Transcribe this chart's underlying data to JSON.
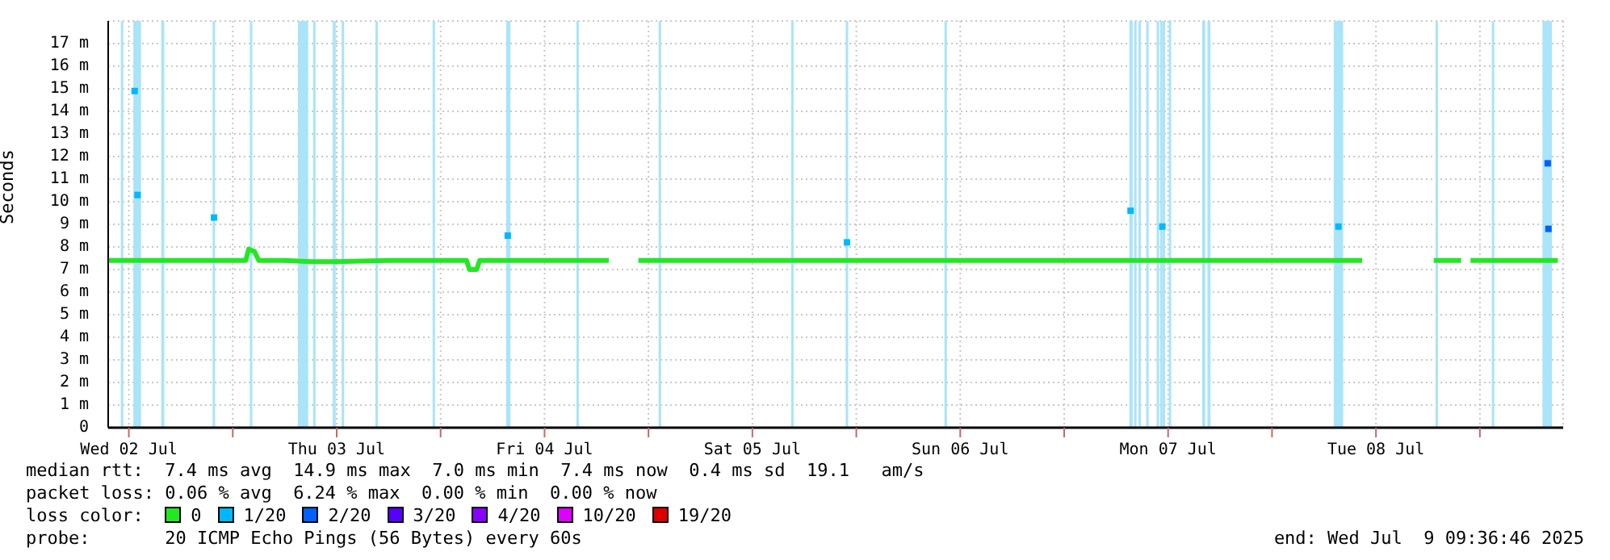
{
  "chart_data": {
    "type": "line",
    "ylabel": "Seconds",
    "xlim": [
      "2025-07-02T09:37",
      "2025-07-09T09:37"
    ],
    "xticks": [
      {
        "value": "2025-07-02T12:00",
        "label": "Wed 02 Jul"
      },
      {
        "value": "2025-07-03T00:00",
        "label": null
      },
      {
        "value": "2025-07-03T12:00",
        "label": "Thu 03 Jul"
      },
      {
        "value": "2025-07-04T00:00",
        "label": null
      },
      {
        "value": "2025-07-04T12:00",
        "label": "Fri 04 Jul"
      },
      {
        "value": "2025-07-05T00:00",
        "label": null
      },
      {
        "value": "2025-07-05T12:00",
        "label": "Sat 05 Jul"
      },
      {
        "value": "2025-07-06T00:00",
        "label": null
      },
      {
        "value": "2025-07-06T12:00",
        "label": "Sun 06 Jul"
      },
      {
        "value": "2025-07-07T00:00",
        "label": null
      },
      {
        "value": "2025-07-07T12:00",
        "label": "Mon 07 Jul"
      },
      {
        "value": "2025-07-08T00:00",
        "label": null
      },
      {
        "value": "2025-07-08T12:00",
        "label": "Tue 08 Jul"
      },
      {
        "value": "2025-07-09T00:00",
        "label": null
      }
    ],
    "ylim": [
      0,
      18
    ],
    "yticks": [
      {
        "value": 0,
        "label": "0"
      },
      {
        "value": 1,
        "label": "1 m"
      },
      {
        "value": 2,
        "label": "2 m"
      },
      {
        "value": 3,
        "label": "3 m"
      },
      {
        "value": 4,
        "label": "4 m"
      },
      {
        "value": 5,
        "label": "5 m"
      },
      {
        "value": 6,
        "label": "6 m"
      },
      {
        "value": 7,
        "label": "7 m"
      },
      {
        "value": 8,
        "label": "8 m"
      },
      {
        "value": 9,
        "label": "9 m"
      },
      {
        "value": 10,
        "label": "10 m"
      },
      {
        "value": 11,
        "label": "11 m"
      },
      {
        "value": 12,
        "label": "12 m"
      },
      {
        "value": 13,
        "label": "13 m"
      },
      {
        "value": 14,
        "label": "14 m"
      },
      {
        "value": 15,
        "label": "15 m"
      },
      {
        "value": 16,
        "label": "16 m"
      },
      {
        "value": 17,
        "label": "17 m"
      }
    ],
    "grid": true,
    "legend": "bottom",
    "series": [
      {
        "name": "0",
        "color": "#22e822",
        "x": [
          "2025-07-02T09:37",
          "2025-07-02T12:00",
          "2025-07-02T15:00",
          "2025-07-02T18:00",
          "2025-07-02T21:00",
          "2025-07-03T00:00",
          "2025-07-03T01:30",
          "2025-07-03T01:50",
          "2025-07-03T02:30",
          "2025-07-03T03:00",
          "2025-07-03T06:00",
          "2025-07-03T09:00",
          "2025-07-03T12:00",
          "2025-07-03T18:00",
          "2025-07-04T00:00",
          "2025-07-04T03:00",
          "2025-07-04T03:20",
          "2025-07-04T04:10",
          "2025-07-04T04:30",
          "2025-07-04T09:00",
          "2025-07-04T15:00",
          "2025-07-04T19:25",
          "2025-07-04T19:30",
          "2025-07-04T22:45",
          "2025-07-04T22:50",
          "2025-07-05T06:00",
          "2025-07-05T12:00",
          "2025-07-05T18:00",
          "2025-07-06T00:00",
          "2025-07-06T06:00",
          "2025-07-06T12:00",
          "2025-07-06T18:00",
          "2025-07-07T00:00",
          "2025-07-07T06:00",
          "2025-07-07T12:00",
          "2025-07-07T18:00",
          "2025-07-08T00:00",
          "2025-07-08T06:00",
          "2025-07-08T10:25",
          "2025-07-08T10:30",
          "2025-07-08T18:35",
          "2025-07-08T18:40",
          "2025-07-08T21:50",
          "2025-07-08T21:55",
          "2025-07-08T22:50",
          "2025-07-08T22:55",
          "2025-07-09T03:00",
          "2025-07-09T09:00"
        ],
        "values": [
          7.4,
          7.4,
          7.4,
          7.4,
          7.4,
          7.4,
          7.4,
          7.9,
          7.8,
          7.4,
          7.4,
          7.35,
          7.35,
          7.4,
          7.4,
          7.4,
          7.0,
          7.0,
          7.4,
          7.4,
          7.4,
          7.4,
          null,
          null,
          7.4,
          7.4,
          7.4,
          7.4,
          7.4,
          7.4,
          7.4,
          7.4,
          7.4,
          7.4,
          7.4,
          7.4,
          7.4,
          7.4,
          7.4,
          null,
          null,
          7.4,
          7.4,
          null,
          null,
          7.4,
          7.4,
          7.4
        ]
      },
      {
        "name": "1/20",
        "color": "#00b8ff",
        "type": "scatter",
        "marker": "square",
        "x": [
          "2025-07-02T12:40",
          "2025-07-02T13:00",
          "2025-07-02T21:50",
          "2025-07-04T07:45",
          "2025-07-05T22:55",
          "2025-07-07T07:40",
          "2025-07-07T11:20",
          "2025-07-08T07:40"
        ],
        "values": [
          14.9,
          10.3,
          9.3,
          8.5,
          8.2,
          9.6,
          8.9,
          8.9
        ]
      },
      {
        "name": "2/20",
        "color": "#0060ff",
        "type": "scatter",
        "marker": "square",
        "x": [
          "2025-07-09T07:50",
          "2025-07-09T07:55"
        ],
        "values": [
          11.7,
          8.8
        ]
      },
      {
        "name": "3/20",
        "color": "#5500ff"
      },
      {
        "name": "4/20",
        "color": "#8800ff"
      },
      {
        "name": "10/20",
        "color": "#dd00ff"
      },
      {
        "name": "19/20",
        "color": "#dd0000"
      }
    ],
    "bands": [
      {
        "axis": "x",
        "from": "2025-07-02T11:10",
        "to": "2025-07-02T11:16",
        "color": "#aae4f8"
      },
      {
        "axis": "x",
        "from": "2025-07-02T12:37",
        "to": "2025-07-02T13:19",
        "color": "#aae4f8"
      },
      {
        "axis": "x",
        "from": "2025-07-02T15:50",
        "to": "2025-07-02T16:00",
        "color": "#aae4f8"
      },
      {
        "axis": "x",
        "from": "2025-07-02T21:46",
        "to": "2025-07-02T21:52",
        "color": "#aae4f8"
      },
      {
        "axis": "x",
        "from": "2025-07-03T02:04",
        "to": "2025-07-03T02:10",
        "color": "#aae4f8"
      },
      {
        "axis": "x",
        "from": "2025-07-03T07:37",
        "to": "2025-07-03T08:37",
        "color": "#aae4f8"
      },
      {
        "axis": "x",
        "from": "2025-07-03T09:22",
        "to": "2025-07-03T09:28",
        "color": "#aae4f8"
      },
      {
        "axis": "x",
        "from": "2025-07-03T11:38",
        "to": "2025-07-03T11:48",
        "color": "#aae4f8"
      },
      {
        "axis": "x",
        "from": "2025-07-03T12:40",
        "to": "2025-07-03T12:46",
        "color": "#aae4f8"
      },
      {
        "axis": "x",
        "from": "2025-07-03T16:34",
        "to": "2025-07-03T16:40",
        "color": "#aae4f8"
      },
      {
        "axis": "x",
        "from": "2025-07-03T23:10",
        "to": "2025-07-03T23:16",
        "color": "#aae4f8"
      },
      {
        "axis": "x",
        "from": "2025-07-04T07:40",
        "to": "2025-07-04T07:46",
        "color": "#aae4f8"
      },
      {
        "axis": "x",
        "from": "2025-07-04T07:52",
        "to": "2025-07-04T07:58",
        "color": "#aae4f8"
      },
      {
        "axis": "x",
        "from": "2025-07-04T15:46",
        "to": "2025-07-04T15:52",
        "color": "#aae4f8"
      },
      {
        "axis": "x",
        "from": "2025-07-05T01:16",
        "to": "2025-07-05T01:22",
        "color": "#aae4f8"
      },
      {
        "axis": "x",
        "from": "2025-07-05T16:34",
        "to": "2025-07-05T16:40",
        "color": "#aae4f8"
      },
      {
        "axis": "x",
        "from": "2025-07-05T22:52",
        "to": "2025-07-05T22:58",
        "color": "#aae4f8"
      },
      {
        "axis": "x",
        "from": "2025-07-06T10:16",
        "to": "2025-07-06T10:22",
        "color": "#aae4f8"
      },
      {
        "axis": "x",
        "from": "2025-07-07T07:37",
        "to": "2025-07-07T07:49",
        "color": "#aae4f8"
      },
      {
        "axis": "x",
        "from": "2025-07-07T08:10",
        "to": "2025-07-07T08:16",
        "color": "#aae4f8"
      },
      {
        "axis": "x",
        "from": "2025-07-07T08:40",
        "to": "2025-07-07T08:46",
        "color": "#aae4f8"
      },
      {
        "axis": "x",
        "from": "2025-07-07T09:34",
        "to": "2025-07-07T09:40",
        "color": "#aae4f8"
      },
      {
        "axis": "x",
        "from": "2025-07-07T10:46",
        "to": "2025-07-07T10:52",
        "color": "#aae4f8"
      },
      {
        "axis": "x",
        "from": "2025-07-07T11:10",
        "to": "2025-07-07T11:16",
        "color": "#aae4f8"
      },
      {
        "axis": "x",
        "from": "2025-07-07T11:28",
        "to": "2025-07-07T11:34",
        "color": "#aae4f8"
      },
      {
        "axis": "x",
        "from": "2025-07-07T12:10",
        "to": "2025-07-07T12:16",
        "color": "#aae4f8"
      },
      {
        "axis": "x",
        "from": "2025-07-07T16:02",
        "to": "2025-07-07T16:12",
        "color": "#aae4f8"
      },
      {
        "axis": "x",
        "from": "2025-07-07T16:38",
        "to": "2025-07-07T16:48",
        "color": "#aae4f8"
      },
      {
        "axis": "x",
        "from": "2025-07-08T07:13",
        "to": "2025-07-08T08:07",
        "color": "#aae4f8"
      },
      {
        "axis": "x",
        "from": "2025-07-08T18:58",
        "to": "2025-07-08T19:04",
        "color": "#aae4f8"
      },
      {
        "axis": "x",
        "from": "2025-07-09T01:28",
        "to": "2025-07-09T01:34",
        "color": "#aae4f8"
      },
      {
        "axis": "x",
        "from": "2025-07-09T07:19",
        "to": "2025-07-09T08:13",
        "color": "#aae4f8"
      }
    ],
    "annotations": [
      "median rtt:  7.4 ms avg  14.9 ms max  7.0 ms min  7.4 ms now  0.4 ms sd  19.1   am/s",
      "packet loss: 0.06 % avg  6.24 % max  0.00 % min  0.00 % now",
      "loss color:",
      "probe:       20 ICMP Echo Pings (56 Bytes) every 60s",
      "end: Wed Jul  9 09:36:46 2025"
    ]
  }
}
